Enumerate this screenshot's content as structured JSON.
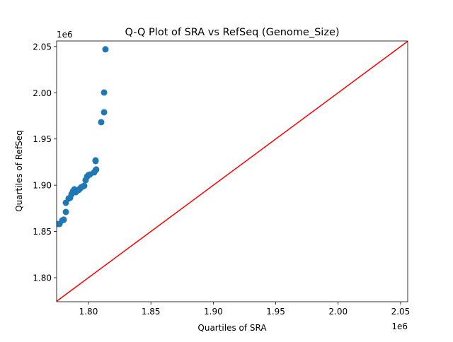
{
  "chart_data": {
    "type": "scatter",
    "title": "Q-Q Plot of SRA vs RefSeq (Genome_Size)",
    "xlabel": "Quartiles of SRA",
    "ylabel": "Quartiles of RefSeq",
    "x_offset_label": "1e6",
    "y_offset_label": "1e6",
    "xlim": [
      1.7745,
      2.0557
    ],
    "ylim": [
      1.774,
      2.056
    ],
    "xticks": [
      1.8,
      1.85,
      1.9,
      1.95,
      2.0,
      2.05
    ],
    "xtick_labels": [
      "1.80",
      "1.85",
      "1.90",
      "1.95",
      "2.00",
      "2.05"
    ],
    "yticks": [
      1.8,
      1.85,
      1.9,
      1.95,
      2.0,
      2.05
    ],
    "ytick_labels": [
      "1.80",
      "1.85",
      "1.90",
      "1.95",
      "2.00",
      "2.05"
    ],
    "grid": false,
    "point_color": "#1f77b4",
    "reference_line_color": "#ff0000",
    "reference_line": {
      "x": [
        1.7745,
        2.0557
      ],
      "y": [
        1.7745,
        2.0557
      ]
    },
    "points": {
      "x": [
        1.7751,
        1.7768,
        1.779,
        1.7802,
        1.7819,
        1.7819,
        1.7841,
        1.7853,
        1.7864,
        1.7875,
        1.7887,
        1.7898,
        1.7909,
        1.7921,
        1.7932,
        1.7943,
        1.7955,
        1.7966,
        1.7977,
        1.7989,
        1.8,
        1.8011,
        1.8045,
        1.8057,
        1.8062,
        1.8057,
        1.8057,
        1.8102,
        1.8125,
        1.8125,
        1.8136
      ],
      "y": [
        1.8581,
        1.8581,
        1.8619,
        1.8627,
        1.8711,
        1.881,
        1.8856,
        1.8864,
        1.8902,
        1.8933,
        1.8956,
        1.8925,
        1.894,
        1.8948,
        1.8963,
        1.8979,
        1.8986,
        1.8994,
        1.9055,
        1.9093,
        1.9109,
        1.9116,
        1.9139,
        1.9162,
        1.917,
        1.9261,
        1.9269,
        1.9682,
        1.9789,
        2.0003,
        2.047
      ]
    }
  }
}
